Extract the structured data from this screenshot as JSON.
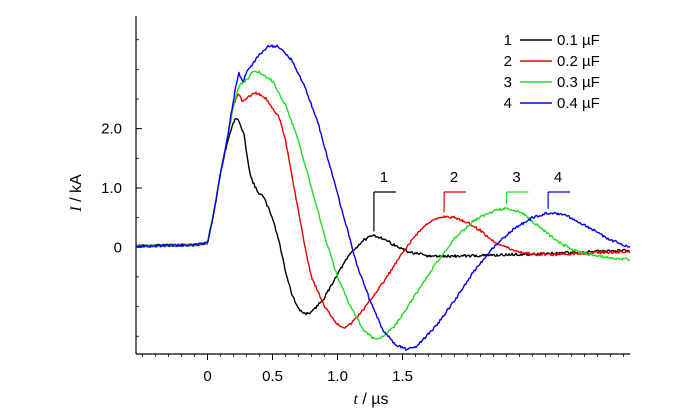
{
  "chart_data": {
    "type": "line",
    "xlabel_var": "t",
    "xlabel_unit": " / µs",
    "ylabel_var": "I",
    "ylabel_unit": " / kA",
    "xlim": [
      -0.55,
      3.25
    ],
    "ylim": [
      -1.8,
      3.9
    ],
    "x_ticks": [
      {
        "value": 0,
        "label": "0"
      },
      {
        "value": 0.5,
        "label": "0.5"
      },
      {
        "value": 1.0,
        "label": "1.0"
      },
      {
        "value": 1.5,
        "label": "1.5"
      }
    ],
    "y_ticks": [
      {
        "value": 0,
        "label": "0"
      },
      {
        "value": 1.0,
        "label": "1.0"
      },
      {
        "value": 2.0,
        "label": "2.0"
      }
    ],
    "legend_position": "top-right",
    "series": [
      {
        "id": "1",
        "name": "0.1 µF",
        "color": "#000000",
        "points": [
          [
            -0.55,
            0.02
          ],
          [
            -0.3,
            0.03
          ],
          [
            -0.1,
            0.04
          ],
          [
            0,
            0.07
          ],
          [
            0.05,
            0.6
          ],
          [
            0.1,
            1.25
          ],
          [
            0.15,
            1.75
          ],
          [
            0.2,
            2.12
          ],
          [
            0.23,
            2.18
          ],
          [
            0.28,
            1.9
          ],
          [
            0.33,
            1.2
          ],
          [
            0.38,
            0.95
          ],
          [
            0.43,
            0.85
          ],
          [
            0.5,
            0.5
          ],
          [
            0.55,
            0.1
          ],
          [
            0.6,
            -0.4
          ],
          [
            0.65,
            -0.8
          ],
          [
            0.7,
            -1.05
          ],
          [
            0.75,
            -1.12
          ],
          [
            0.8,
            -1.1
          ],
          [
            0.9,
            -0.85
          ],
          [
            1.0,
            -0.45
          ],
          [
            1.1,
            -0.1
          ],
          [
            1.2,
            0.12
          ],
          [
            1.28,
            0.2
          ],
          [
            1.35,
            0.15
          ],
          [
            1.45,
            0.02
          ],
          [
            1.55,
            -0.08
          ],
          [
            1.7,
            -0.15
          ],
          [
            1.9,
            -0.15
          ],
          [
            2.1,
            -0.14
          ],
          [
            2.4,
            -0.12
          ],
          [
            2.7,
            -0.1
          ],
          [
            3.0,
            -0.07
          ],
          [
            3.25,
            -0.05
          ]
        ]
      },
      {
        "id": "2",
        "name": "0.2 µF",
        "color": "#ee0000",
        "points": [
          [
            -0.55,
            0.02
          ],
          [
            -0.3,
            0.03
          ],
          [
            -0.1,
            0.04
          ],
          [
            0,
            0.07
          ],
          [
            0.05,
            0.6
          ],
          [
            0.1,
            1.25
          ],
          [
            0.15,
            1.8
          ],
          [
            0.2,
            2.4
          ],
          [
            0.24,
            2.6
          ],
          [
            0.27,
            2.45
          ],
          [
            0.32,
            2.55
          ],
          [
            0.38,
            2.6
          ],
          [
            0.45,
            2.5
          ],
          [
            0.55,
            2.2
          ],
          [
            0.6,
            1.8
          ],
          [
            0.65,
            1.2
          ],
          [
            0.7,
            0.6
          ],
          [
            0.75,
            0.0
          ],
          [
            0.8,
            -0.5
          ],
          [
            0.9,
            -1.0
          ],
          [
            1.0,
            -1.3
          ],
          [
            1.05,
            -1.35
          ],
          [
            1.1,
            -1.3
          ],
          [
            1.2,
            -1.05
          ],
          [
            1.35,
            -0.6
          ],
          [
            1.5,
            -0.1
          ],
          [
            1.6,
            0.2
          ],
          [
            1.7,
            0.42
          ],
          [
            1.82,
            0.52
          ],
          [
            1.9,
            0.5
          ],
          [
            2.0,
            0.42
          ],
          [
            2.1,
            0.28
          ],
          [
            2.2,
            0.1
          ],
          [
            2.35,
            -0.05
          ],
          [
            2.5,
            -0.12
          ],
          [
            2.7,
            -0.12
          ],
          [
            2.9,
            -0.1
          ],
          [
            3.1,
            -0.08
          ],
          [
            3.25,
            -0.08
          ]
        ]
      },
      {
        "id": "3",
        "name": "0.3 µF",
        "color": "#22dd22",
        "points": [
          [
            -0.55,
            0.02
          ],
          [
            -0.3,
            0.03
          ],
          [
            -0.1,
            0.04
          ],
          [
            0,
            0.07
          ],
          [
            0.05,
            0.6
          ],
          [
            0.1,
            1.25
          ],
          [
            0.15,
            1.8
          ],
          [
            0.2,
            2.4
          ],
          [
            0.25,
            2.75
          ],
          [
            0.3,
            2.82
          ],
          [
            0.35,
            2.95
          ],
          [
            0.4,
            2.95
          ],
          [
            0.5,
            2.8
          ],
          [
            0.6,
            2.4
          ],
          [
            0.7,
            1.8
          ],
          [
            0.8,
            1.0
          ],
          [
            0.9,
            0.2
          ],
          [
            1.0,
            -0.5
          ],
          [
            1.1,
            -1.0
          ],
          [
            1.2,
            -1.4
          ],
          [
            1.28,
            -1.55
          ],
          [
            1.35,
            -1.5
          ],
          [
            1.45,
            -1.3
          ],
          [
            1.6,
            -0.8
          ],
          [
            1.75,
            -0.3
          ],
          [
            1.9,
            0.15
          ],
          [
            2.05,
            0.45
          ],
          [
            2.2,
            0.62
          ],
          [
            2.3,
            0.66
          ],
          [
            2.42,
            0.58
          ],
          [
            2.55,
            0.35
          ],
          [
            2.7,
            0.08
          ],
          [
            2.85,
            -0.08
          ],
          [
            3.0,
            -0.15
          ],
          [
            3.1,
            -0.18
          ],
          [
            3.25,
            -0.2
          ]
        ]
      },
      {
        "id": "4",
        "name": "0.4 µF",
        "color": "#0000ee",
        "points": [
          [
            -0.55,
            0.02
          ],
          [
            -0.3,
            0.03
          ],
          [
            -0.1,
            0.04
          ],
          [
            0,
            0.07
          ],
          [
            0.05,
            0.6
          ],
          [
            0.1,
            1.25
          ],
          [
            0.15,
            1.8
          ],
          [
            0.2,
            2.5
          ],
          [
            0.24,
            2.95
          ],
          [
            0.27,
            2.78
          ],
          [
            0.3,
            2.95
          ],
          [
            0.4,
            3.25
          ],
          [
            0.47,
            3.4
          ],
          [
            0.55,
            3.38
          ],
          [
            0.65,
            3.15
          ],
          [
            0.75,
            2.7
          ],
          [
            0.85,
            2.1
          ],
          [
            0.95,
            1.3
          ],
          [
            1.05,
            0.5
          ],
          [
            1.15,
            -0.3
          ],
          [
            1.25,
            -0.9
          ],
          [
            1.35,
            -1.4
          ],
          [
            1.45,
            -1.65
          ],
          [
            1.53,
            -1.72
          ],
          [
            1.6,
            -1.68
          ],
          [
            1.75,
            -1.35
          ],
          [
            1.9,
            -0.9
          ],
          [
            2.05,
            -0.4
          ],
          [
            2.2,
            0.0
          ],
          [
            2.35,
            0.3
          ],
          [
            2.5,
            0.5
          ],
          [
            2.62,
            0.58
          ],
          [
            2.75,
            0.55
          ],
          [
            2.9,
            0.38
          ],
          [
            3.05,
            0.18
          ],
          [
            3.15,
            0.08
          ],
          [
            3.25,
            0.0
          ]
        ]
      }
    ],
    "annotations": [
      {
        "series": "1",
        "label": "1",
        "x": 1.28
      },
      {
        "series": "2",
        "label": "2",
        "x": 1.82
      },
      {
        "series": "3",
        "label": "3",
        "x": 2.3
      },
      {
        "series": "4",
        "label": "4",
        "x": 2.62
      }
    ]
  }
}
